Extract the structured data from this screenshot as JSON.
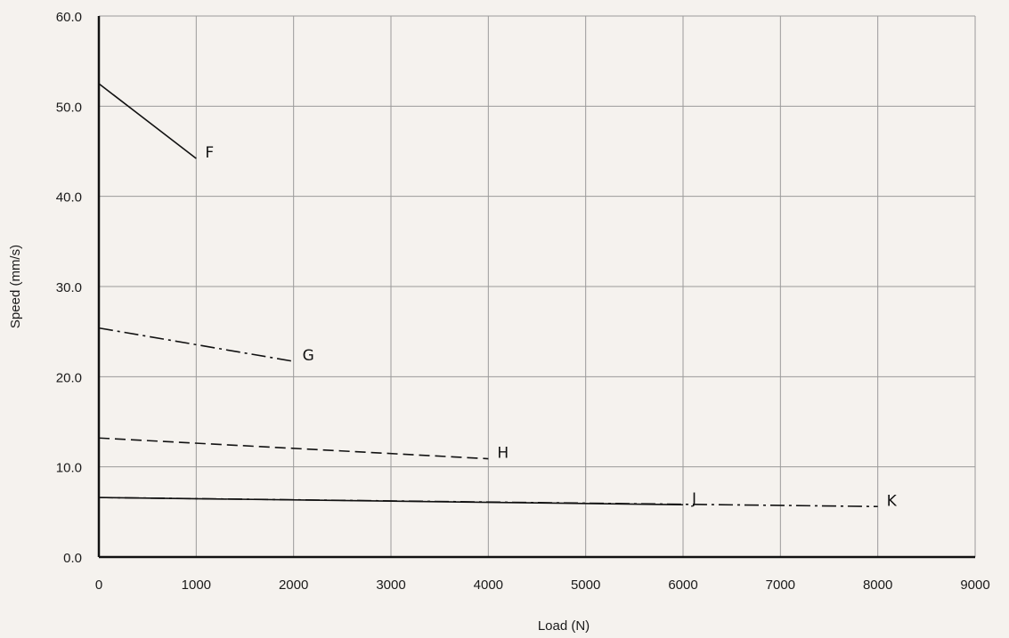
{
  "chart_data": {
    "type": "line",
    "title": "",
    "xlabel": "Load (N)",
    "ylabel": "Speed (mm/s)",
    "xlim": [
      0,
      9000
    ],
    "ylim": [
      0,
      60
    ],
    "x_ticks": [
      0,
      1000,
      2000,
      3000,
      4000,
      5000,
      6000,
      7000,
      8000,
      9000
    ],
    "x_tick_labels": [
      "0",
      "1000",
      "2000",
      "3000",
      "4000",
      "5000",
      "6000",
      "7000",
      "8000",
      "9000"
    ],
    "y_ticks": [
      0,
      10,
      20,
      30,
      40,
      50,
      60
    ],
    "y_tick_labels": [
      "0.0",
      "10.0",
      "20.0",
      "30.0",
      "40.0",
      "50.0",
      "60.0"
    ],
    "grid": true,
    "series": [
      {
        "name": "F",
        "style": "solid",
        "x": [
          0,
          1000
        ],
        "y": [
          52.5,
          44.2
        ]
      },
      {
        "name": "G",
        "style": "dash-dot",
        "x": [
          0,
          2000
        ],
        "y": [
          25.4,
          21.7
        ]
      },
      {
        "name": "H",
        "style": "dashed",
        "x": [
          0,
          4000
        ],
        "y": [
          13.2,
          10.9
        ]
      },
      {
        "name": "J",
        "style": "solid",
        "x": [
          0,
          6000
        ],
        "y": [
          6.6,
          5.8
        ]
      },
      {
        "name": "K",
        "style": "dash-dot",
        "x": [
          0,
          8000
        ],
        "y": [
          6.6,
          5.6
        ]
      }
    ],
    "colors": {
      "background": "#f5f2ee",
      "grid": "#9a9a9a",
      "lines": "#111111"
    }
  }
}
